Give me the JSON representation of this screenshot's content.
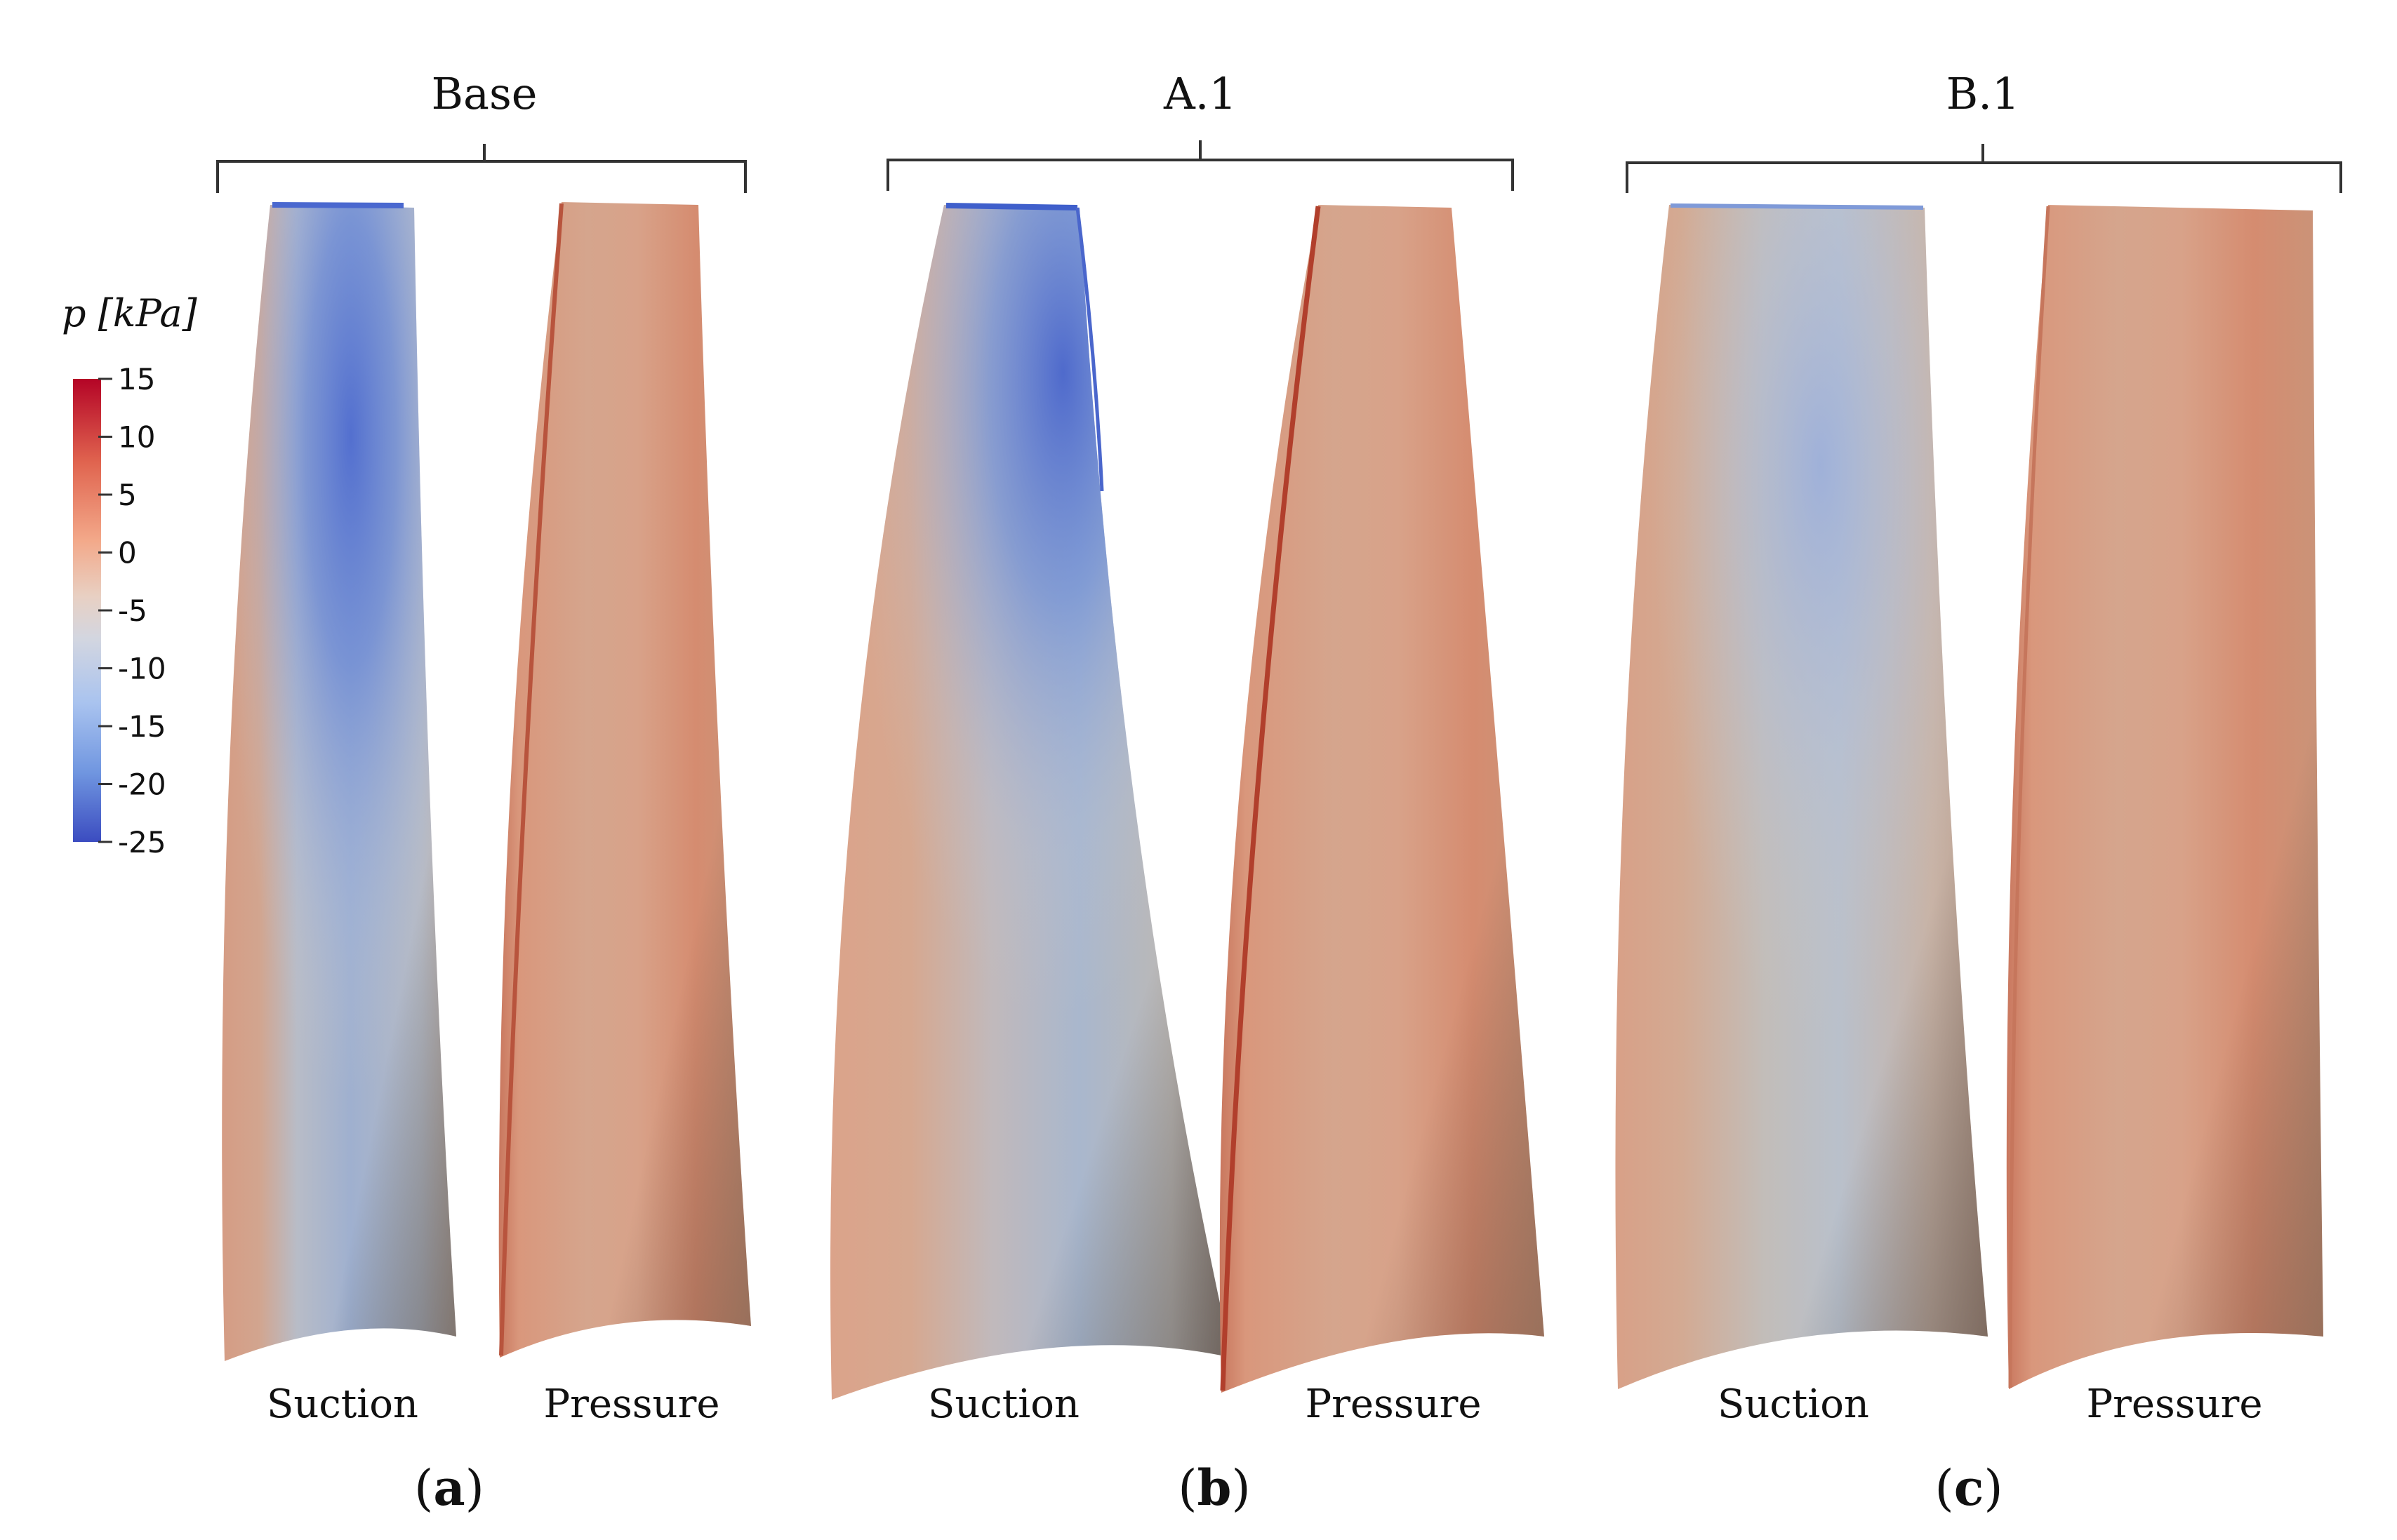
{
  "colorbar": {
    "title": "p [kPa]",
    "min": -25,
    "max": 15,
    "ticks": [
      "15",
      "10",
      "5",
      "0",
      "-5",
      "-10",
      "-15",
      "-20",
      "-25"
    ],
    "colors": {
      "high": "#b40426",
      "mid": "#dddcdc",
      "low": "#3b4cc0"
    }
  },
  "panels": [
    {
      "group_title": "Base",
      "label_letter": "a",
      "suction_label": "Suction",
      "pressure_label": "Pressure"
    },
    {
      "group_title": "A.1",
      "label_letter": "b",
      "suction_label": "Suction",
      "pressure_label": "Pressure"
    },
    {
      "group_title": "B.1",
      "label_letter": "c",
      "suction_label": "Suction",
      "pressure_label": "Pressure"
    }
  ]
}
